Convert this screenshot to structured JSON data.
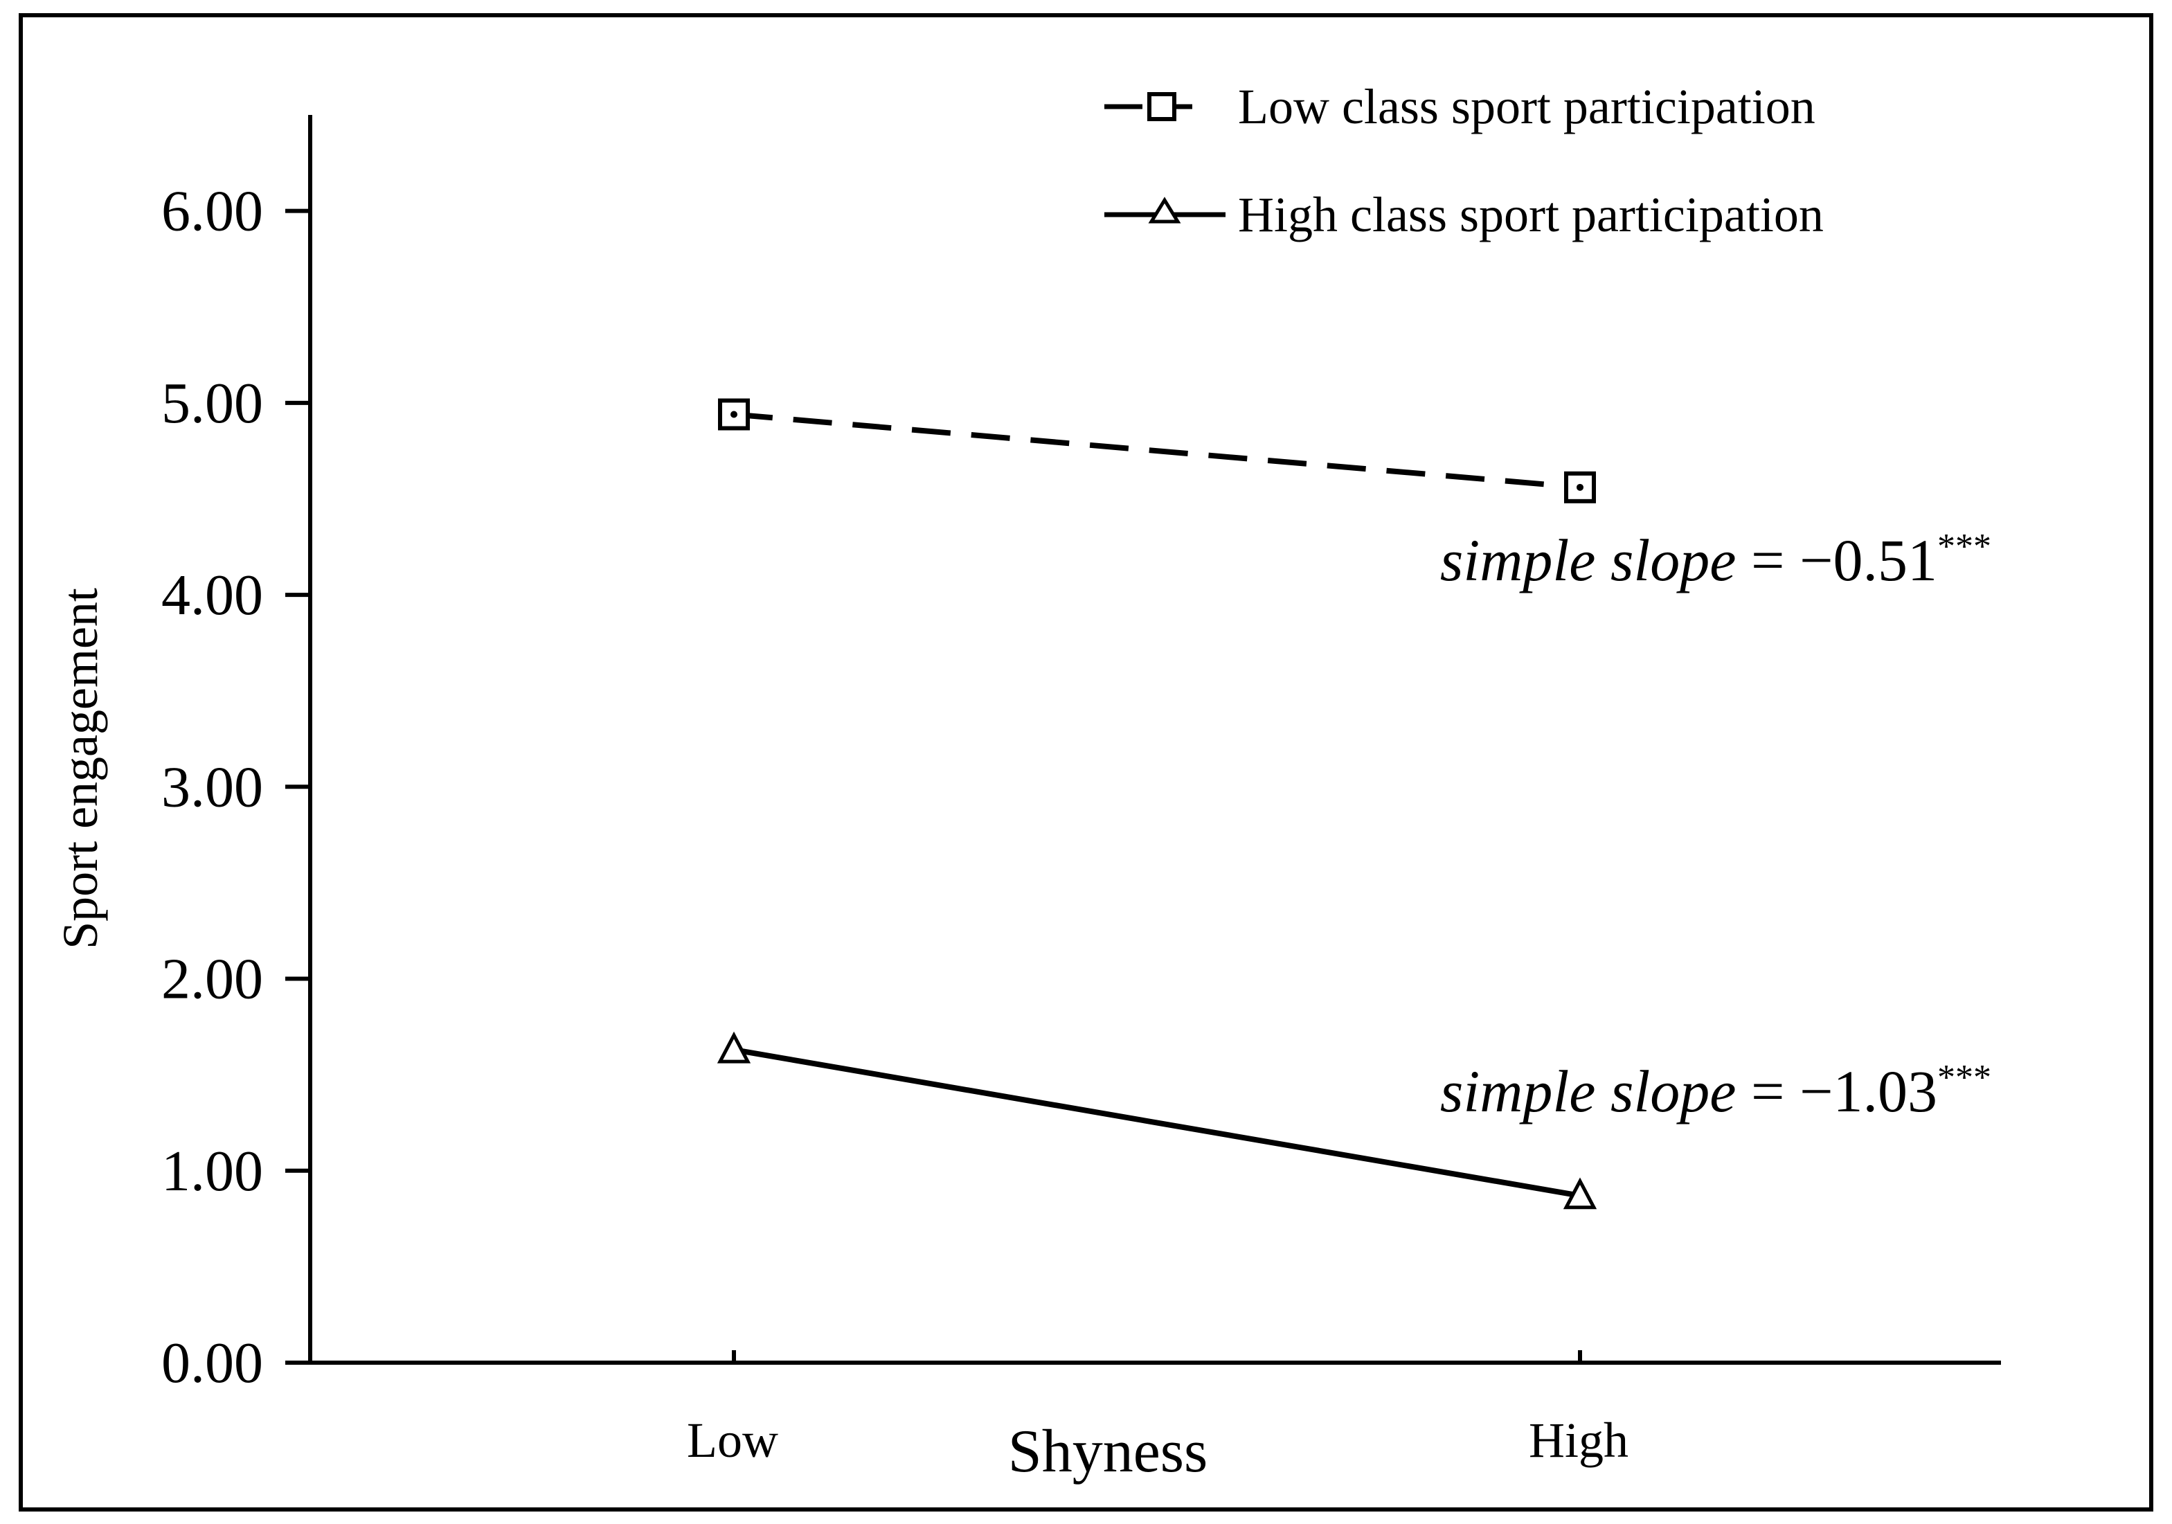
{
  "chart_data": {
    "type": "line",
    "title": "",
    "xlabel": "Shyness",
    "ylabel": "Sport engagement",
    "categories": [
      "Low",
      "High"
    ],
    "ylim": [
      0,
      6.5
    ],
    "yticks": [
      "0.00",
      "1.00",
      "2.00",
      "3.00",
      "4.00",
      "5.00",
      "6.00"
    ],
    "grid": false,
    "legend_position": "top-right",
    "series": [
      {
        "name": "Low class sport participation",
        "values": [
          4.94,
          4.56
        ],
        "line_style": "dashed",
        "marker": "square",
        "annotation": {
          "prefix": "simple slope",
          "equals": " = −0.51",
          "stars": "***"
        }
      },
      {
        "name": "High class sport participation",
        "values": [
          1.63,
          0.87
        ],
        "line_style": "solid",
        "marker": "triangle",
        "annotation": {
          "prefix": "simple slope",
          "equals": " = −1.03",
          "stars": "***"
        }
      }
    ],
    "colors": {
      "line": "#000000",
      "background": "#ffffff"
    }
  }
}
